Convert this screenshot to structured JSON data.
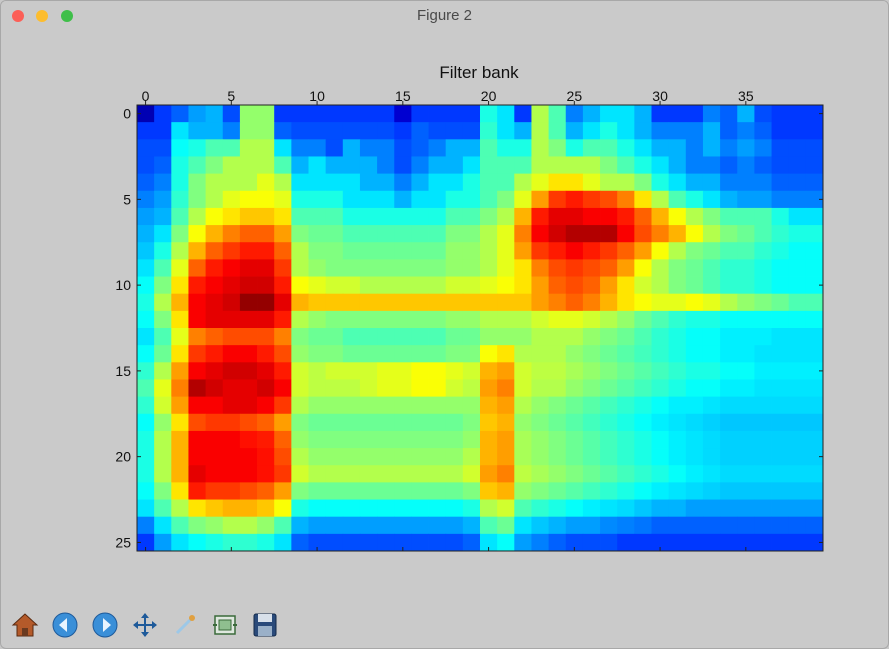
{
  "window": {
    "title": "Figure 2"
  },
  "chart_data": {
    "type": "heatmap",
    "title": "Filter bank",
    "xlabel": "",
    "ylabel": "",
    "xlim": [
      -0.5,
      39.5
    ],
    "ylim": [
      -0.5,
      25.5
    ],
    "x_ticks": [
      0,
      5,
      10,
      15,
      20,
      25,
      30,
      35
    ],
    "y_ticks": [
      0,
      5,
      10,
      15,
      20,
      25
    ],
    "colormap": "jet",
    "x_axis_position": "top",
    "grid": false,
    "rows": 26,
    "cols": 40,
    "values": [
      [
        0.05,
        0.18,
        0.22,
        0.28,
        0.3,
        0.2,
        0.52,
        0.52,
        0.18,
        0.18,
        0.18,
        0.18,
        0.18,
        0.18,
        0.18,
        0.08,
        0.18,
        0.18,
        0.18,
        0.18,
        0.4,
        0.35,
        0.18,
        0.55,
        0.45,
        0.25,
        0.3,
        0.35,
        0.35,
        0.3,
        0.18,
        0.18,
        0.18,
        0.25,
        0.22,
        0.3,
        0.2,
        0.18,
        0.18,
        0.18
      ],
      [
        0.18,
        0.18,
        0.35,
        0.3,
        0.3,
        0.25,
        0.52,
        0.52,
        0.22,
        0.2,
        0.2,
        0.2,
        0.2,
        0.2,
        0.2,
        0.18,
        0.22,
        0.2,
        0.2,
        0.2,
        0.42,
        0.35,
        0.3,
        0.55,
        0.45,
        0.3,
        0.35,
        0.4,
        0.35,
        0.3,
        0.25,
        0.25,
        0.25,
        0.3,
        0.22,
        0.25,
        0.22,
        0.18,
        0.18,
        0.18
      ],
      [
        0.2,
        0.2,
        0.38,
        0.4,
        0.45,
        0.45,
        0.55,
        0.55,
        0.35,
        0.25,
        0.25,
        0.2,
        0.3,
        0.25,
        0.25,
        0.2,
        0.22,
        0.25,
        0.3,
        0.3,
        0.45,
        0.4,
        0.4,
        0.55,
        0.5,
        0.4,
        0.45,
        0.45,
        0.4,
        0.35,
        0.3,
        0.3,
        0.25,
        0.3,
        0.25,
        0.28,
        0.25,
        0.2,
        0.2,
        0.2
      ],
      [
        0.2,
        0.22,
        0.4,
        0.45,
        0.5,
        0.55,
        0.55,
        0.55,
        0.45,
        0.3,
        0.35,
        0.3,
        0.3,
        0.3,
        0.25,
        0.2,
        0.25,
        0.3,
        0.3,
        0.35,
        0.45,
        0.45,
        0.45,
        0.55,
        0.55,
        0.55,
        0.55,
        0.5,
        0.45,
        0.4,
        0.35,
        0.3,
        0.25,
        0.25,
        0.22,
        0.25,
        0.22,
        0.2,
        0.2,
        0.2
      ],
      [
        0.22,
        0.25,
        0.4,
        0.5,
        0.55,
        0.55,
        0.55,
        0.6,
        0.55,
        0.35,
        0.35,
        0.35,
        0.35,
        0.3,
        0.3,
        0.25,
        0.3,
        0.35,
        0.35,
        0.4,
        0.45,
        0.45,
        0.55,
        0.6,
        0.65,
        0.65,
        0.6,
        0.55,
        0.55,
        0.5,
        0.4,
        0.35,
        0.3,
        0.3,
        0.25,
        0.25,
        0.25,
        0.22,
        0.22,
        0.22
      ],
      [
        0.25,
        0.28,
        0.42,
        0.5,
        0.55,
        0.6,
        0.62,
        0.62,
        0.6,
        0.4,
        0.4,
        0.4,
        0.35,
        0.35,
        0.35,
        0.3,
        0.35,
        0.35,
        0.4,
        0.4,
        0.45,
        0.5,
        0.6,
        0.72,
        0.82,
        0.85,
        0.82,
        0.8,
        0.75,
        0.65,
        0.55,
        0.45,
        0.4,
        0.35,
        0.3,
        0.28,
        0.28,
        0.25,
        0.25,
        0.25
      ],
      [
        0.28,
        0.3,
        0.45,
        0.55,
        0.62,
        0.65,
        0.68,
        0.68,
        0.65,
        0.45,
        0.45,
        0.45,
        0.4,
        0.4,
        0.4,
        0.4,
        0.4,
        0.4,
        0.45,
        0.45,
        0.5,
        0.55,
        0.7,
        0.85,
        0.9,
        0.9,
        0.88,
        0.88,
        0.85,
        0.78,
        0.7,
        0.62,
        0.55,
        0.5,
        0.45,
        0.45,
        0.45,
        0.4,
        0.35,
        0.35
      ],
      [
        0.3,
        0.35,
        0.5,
        0.62,
        0.7,
        0.75,
        0.78,
        0.78,
        0.72,
        0.5,
        0.48,
        0.48,
        0.45,
        0.45,
        0.45,
        0.45,
        0.45,
        0.45,
        0.5,
        0.5,
        0.55,
        0.6,
        0.75,
        0.88,
        0.92,
        0.95,
        0.95,
        0.95,
        0.88,
        0.8,
        0.75,
        0.7,
        0.62,
        0.55,
        0.5,
        0.48,
        0.45,
        0.42,
        0.4,
        0.4
      ],
      [
        0.32,
        0.4,
        0.55,
        0.7,
        0.78,
        0.82,
        0.85,
        0.85,
        0.78,
        0.55,
        0.5,
        0.5,
        0.48,
        0.48,
        0.48,
        0.48,
        0.48,
        0.48,
        0.52,
        0.52,
        0.55,
        0.6,
        0.72,
        0.82,
        0.85,
        0.88,
        0.85,
        0.82,
        0.78,
        0.72,
        0.62,
        0.55,
        0.5,
        0.48,
        0.45,
        0.45,
        0.42,
        0.4,
        0.38,
        0.38
      ],
      [
        0.35,
        0.45,
        0.6,
        0.78,
        0.85,
        0.88,
        0.9,
        0.9,
        0.82,
        0.55,
        0.52,
        0.5,
        0.5,
        0.5,
        0.5,
        0.5,
        0.5,
        0.5,
        0.52,
        0.52,
        0.55,
        0.6,
        0.65,
        0.75,
        0.8,
        0.82,
        0.8,
        0.78,
        0.72,
        0.62,
        0.55,
        0.5,
        0.48,
        0.45,
        0.42,
        0.42,
        0.4,
        0.38,
        0.38,
        0.38
      ],
      [
        0.38,
        0.5,
        0.65,
        0.85,
        0.88,
        0.9,
        0.92,
        0.92,
        0.85,
        0.62,
        0.6,
        0.58,
        0.58,
        0.55,
        0.55,
        0.55,
        0.55,
        0.55,
        0.58,
        0.58,
        0.6,
        0.62,
        0.65,
        0.72,
        0.78,
        0.8,
        0.78,
        0.72,
        0.65,
        0.58,
        0.55,
        0.5,
        0.48,
        0.45,
        0.42,
        0.42,
        0.4,
        0.38,
        0.38,
        0.38
      ],
      [
        0.4,
        0.55,
        0.7,
        0.88,
        0.9,
        0.92,
        0.98,
        0.98,
        0.9,
        0.7,
        0.68,
        0.68,
        0.68,
        0.68,
        0.68,
        0.68,
        0.68,
        0.68,
        0.68,
        0.68,
        0.68,
        0.68,
        0.68,
        0.72,
        0.75,
        0.78,
        0.75,
        0.7,
        0.65,
        0.62,
        0.6,
        0.6,
        0.62,
        0.6,
        0.55,
        0.52,
        0.5,
        0.48,
        0.45,
        0.45
      ],
      [
        0.38,
        0.5,
        0.65,
        0.88,
        0.9,
        0.9,
        0.9,
        0.9,
        0.85,
        0.55,
        0.52,
        0.5,
        0.5,
        0.5,
        0.5,
        0.5,
        0.5,
        0.5,
        0.52,
        0.52,
        0.55,
        0.55,
        0.55,
        0.58,
        0.6,
        0.6,
        0.58,
        0.55,
        0.52,
        0.48,
        0.45,
        0.42,
        0.4,
        0.4,
        0.38,
        0.38,
        0.38,
        0.38,
        0.38,
        0.38
      ],
      [
        0.35,
        0.45,
        0.6,
        0.75,
        0.78,
        0.8,
        0.8,
        0.8,
        0.75,
        0.5,
        0.48,
        0.48,
        0.45,
        0.45,
        0.45,
        0.45,
        0.45,
        0.45,
        0.48,
        0.48,
        0.52,
        0.52,
        0.52,
        0.55,
        0.55,
        0.55,
        0.52,
        0.5,
        0.48,
        0.45,
        0.42,
        0.4,
        0.38,
        0.38,
        0.36,
        0.36,
        0.36,
        0.35,
        0.35,
        0.35
      ],
      [
        0.38,
        0.48,
        0.65,
        0.82,
        0.85,
        0.88,
        0.88,
        0.85,
        0.8,
        0.52,
        0.5,
        0.5,
        0.48,
        0.48,
        0.48,
        0.48,
        0.48,
        0.48,
        0.5,
        0.5,
        0.62,
        0.65,
        0.55,
        0.55,
        0.55,
        0.52,
        0.5,
        0.48,
        0.46,
        0.44,
        0.42,
        0.4,
        0.38,
        0.38,
        0.36,
        0.36,
        0.35,
        0.35,
        0.35,
        0.35
      ],
      [
        0.42,
        0.55,
        0.72,
        0.88,
        0.9,
        0.92,
        0.92,
        0.9,
        0.85,
        0.58,
        0.56,
        0.58,
        0.58,
        0.58,
        0.6,
        0.6,
        0.62,
        0.62,
        0.6,
        0.58,
        0.7,
        0.72,
        0.58,
        0.56,
        0.56,
        0.54,
        0.52,
        0.5,
        0.48,
        0.46,
        0.44,
        0.42,
        0.4,
        0.4,
        0.38,
        0.38,
        0.36,
        0.36,
        0.36,
        0.36
      ],
      [
        0.45,
        0.6,
        0.75,
        0.95,
        0.92,
        0.9,
        0.9,
        0.92,
        0.88,
        0.58,
        0.56,
        0.56,
        0.56,
        0.58,
        0.6,
        0.6,
        0.62,
        0.62,
        0.58,
        0.56,
        0.72,
        0.75,
        0.58,
        0.55,
        0.55,
        0.52,
        0.5,
        0.48,
        0.46,
        0.44,
        0.42,
        0.4,
        0.38,
        0.38,
        0.36,
        0.36,
        0.35,
        0.35,
        0.35,
        0.35
      ],
      [
        0.42,
        0.58,
        0.72,
        0.88,
        0.88,
        0.9,
        0.9,
        0.88,
        0.82,
        0.55,
        0.52,
        0.52,
        0.52,
        0.52,
        0.52,
        0.52,
        0.52,
        0.52,
        0.52,
        0.52,
        0.7,
        0.72,
        0.55,
        0.52,
        0.5,
        0.48,
        0.46,
        0.44,
        0.42,
        0.4,
        0.38,
        0.36,
        0.36,
        0.35,
        0.34,
        0.34,
        0.34,
        0.34,
        0.34,
        0.34
      ],
      [
        0.38,
        0.52,
        0.65,
        0.8,
        0.82,
        0.82,
        0.8,
        0.78,
        0.72,
        0.5,
        0.48,
        0.48,
        0.48,
        0.48,
        0.48,
        0.48,
        0.48,
        0.48,
        0.48,
        0.5,
        0.68,
        0.7,
        0.52,
        0.5,
        0.48,
        0.46,
        0.44,
        0.42,
        0.4,
        0.38,
        0.36,
        0.35,
        0.34,
        0.33,
        0.32,
        0.32,
        0.32,
        0.32,
        0.32,
        0.32
      ],
      [
        0.4,
        0.55,
        0.7,
        0.88,
        0.88,
        0.88,
        0.86,
        0.85,
        0.78,
        0.52,
        0.5,
        0.5,
        0.5,
        0.5,
        0.5,
        0.5,
        0.5,
        0.5,
        0.5,
        0.52,
        0.7,
        0.72,
        0.54,
        0.52,
        0.5,
        0.48,
        0.46,
        0.44,
        0.42,
        0.4,
        0.38,
        0.36,
        0.35,
        0.34,
        0.33,
        0.33,
        0.33,
        0.33,
        0.33,
        0.33
      ],
      [
        0.4,
        0.55,
        0.7,
        0.88,
        0.88,
        0.88,
        0.88,
        0.86,
        0.8,
        0.55,
        0.52,
        0.52,
        0.52,
        0.52,
        0.52,
        0.52,
        0.52,
        0.52,
        0.52,
        0.55,
        0.7,
        0.72,
        0.54,
        0.52,
        0.5,
        0.48,
        0.46,
        0.44,
        0.42,
        0.4,
        0.38,
        0.36,
        0.35,
        0.34,
        0.33,
        0.33,
        0.33,
        0.33,
        0.33,
        0.33
      ],
      [
        0.4,
        0.55,
        0.7,
        0.9,
        0.88,
        0.88,
        0.88,
        0.86,
        0.82,
        0.58,
        0.55,
        0.55,
        0.55,
        0.55,
        0.55,
        0.55,
        0.55,
        0.55,
        0.55,
        0.58,
        0.72,
        0.75,
        0.56,
        0.54,
        0.52,
        0.5,
        0.48,
        0.46,
        0.44,
        0.42,
        0.4,
        0.38,
        0.36,
        0.35,
        0.34,
        0.34,
        0.34,
        0.34,
        0.34,
        0.34
      ],
      [
        0.38,
        0.5,
        0.65,
        0.85,
        0.82,
        0.82,
        0.8,
        0.78,
        0.72,
        0.5,
        0.48,
        0.48,
        0.48,
        0.48,
        0.48,
        0.48,
        0.48,
        0.48,
        0.48,
        0.5,
        0.68,
        0.7,
        0.52,
        0.5,
        0.48,
        0.46,
        0.44,
        0.42,
        0.4,
        0.38,
        0.36,
        0.35,
        0.34,
        0.33,
        0.32,
        0.32,
        0.32,
        0.32,
        0.32,
        0.32
      ],
      [
        0.35,
        0.45,
        0.55,
        0.65,
        0.68,
        0.7,
        0.7,
        0.68,
        0.62,
        0.4,
        0.38,
        0.38,
        0.38,
        0.38,
        0.38,
        0.38,
        0.38,
        0.38,
        0.38,
        0.4,
        0.55,
        0.58,
        0.45,
        0.42,
        0.4,
        0.38,
        0.36,
        0.35,
        0.34,
        0.32,
        0.3,
        0.3,
        0.28,
        0.28,
        0.28,
        0.28,
        0.28,
        0.28,
        0.28,
        0.28
      ],
      [
        0.25,
        0.35,
        0.45,
        0.5,
        0.52,
        0.55,
        0.55,
        0.52,
        0.45,
        0.3,
        0.28,
        0.28,
        0.28,
        0.28,
        0.28,
        0.28,
        0.28,
        0.28,
        0.28,
        0.3,
        0.45,
        0.48,
        0.35,
        0.32,
        0.3,
        0.28,
        0.28,
        0.26,
        0.25,
        0.24,
        0.22,
        0.22,
        0.22,
        0.22,
        0.22,
        0.22,
        0.22,
        0.22,
        0.22,
        0.22
      ],
      [
        0.18,
        0.28,
        0.35,
        0.38,
        0.4,
        0.42,
        0.42,
        0.4,
        0.35,
        0.22,
        0.2,
        0.2,
        0.2,
        0.2,
        0.2,
        0.2,
        0.2,
        0.2,
        0.2,
        0.22,
        0.35,
        0.38,
        0.28,
        0.25,
        0.22,
        0.2,
        0.2,
        0.2,
        0.18,
        0.18,
        0.18,
        0.18,
        0.18,
        0.18,
        0.18,
        0.18,
        0.18,
        0.18,
        0.18,
        0.18
      ]
    ]
  },
  "toolbar": {
    "buttons": [
      {
        "name": "home-button",
        "icon": "home-icon"
      },
      {
        "name": "back-button",
        "icon": "back-arrow-icon"
      },
      {
        "name": "forward-button",
        "icon": "forward-arrow-icon"
      },
      {
        "name": "pan-button",
        "icon": "pan-icon"
      },
      {
        "name": "zoom-button",
        "icon": "zoom-icon"
      },
      {
        "name": "subplots-button",
        "icon": "subplots-icon"
      },
      {
        "name": "save-button",
        "icon": "save-icon"
      }
    ]
  }
}
